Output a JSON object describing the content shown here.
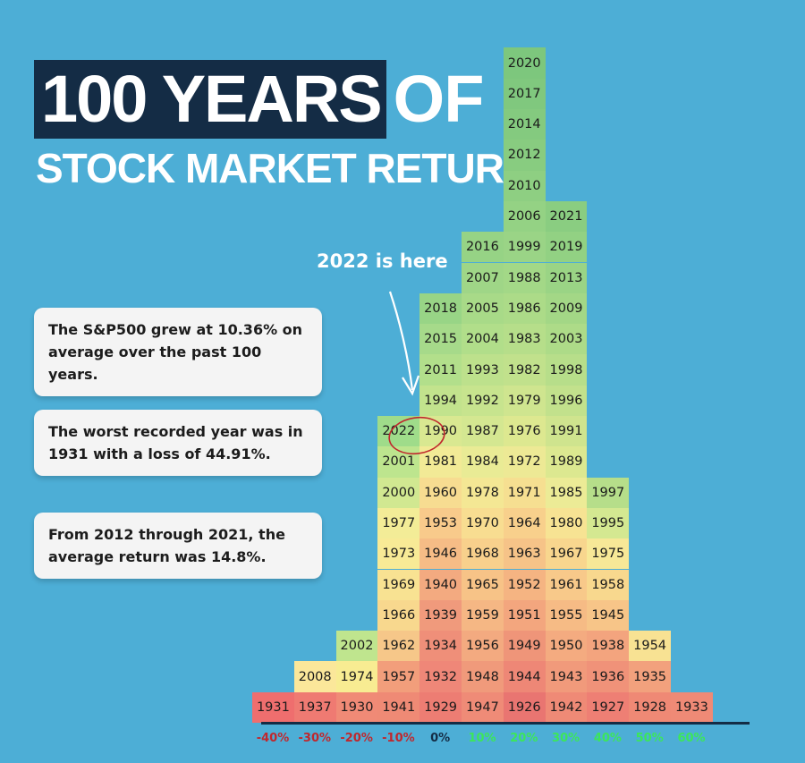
{
  "title": {
    "highlight": "100 YEARS",
    "rest": "OF",
    "line2": "STOCK MARKET RETURN"
  },
  "cards": [
    "The S&P500 grew at 10.36% on average over the past 100 years.",
    "The worst recorded year was in 1931 with a loss of 44.91%.",
    "From 2012 through 2021, the average return was 14.8%."
  ],
  "annotation": "2022 is here",
  "colors": {
    "background": "#4daed6",
    "title_highlight": "#142c45",
    "negative_axis": "#c0272d",
    "positive_axis": "#3ce65a",
    "circle": "#c0272d"
  },
  "chart_data": {
    "type": "histogram",
    "title": "100 YEARS OF STOCK MARKET RETURN",
    "categories": [
      "-40%",
      "-30%",
      "-20%",
      "-10%",
      "0%",
      "10%",
      "20%",
      "30%",
      "40%",
      "50%",
      "60%"
    ],
    "columns": [
      [
        "1931"
      ],
      [
        "1937",
        "2008"
      ],
      [
        "1930",
        "1974",
        "2002"
      ],
      [
        "1941",
        "1957",
        "1962",
        "1966",
        "1969",
        "1973",
        "1977",
        "2000",
        "2001",
        "2022"
      ],
      [
        "1929",
        "1932",
        "1934",
        "1939",
        "1940",
        "1946",
        "1953",
        "1960",
        "1981",
        "1990",
        "1994",
        "2011",
        "2015",
        "2018"
      ],
      [
        "1947",
        "1948",
        "1956",
        "1959",
        "1965",
        "1968",
        "1970",
        "1978",
        "1984",
        "1987",
        "1992",
        "1993",
        "2004",
        "2005",
        "2007",
        "2016"
      ],
      [
        "1926",
        "1944",
        "1949",
        "1951",
        "1952",
        "1963",
        "1964",
        "1971",
        "1972",
        "1976",
        "1979",
        "1982",
        "1983",
        "1986",
        "1988",
        "1999",
        "2006",
        "2010",
        "2012",
        "2014",
        "2017",
        "2020"
      ],
      [
        "1942",
        "1943",
        "1950",
        "1955",
        "1961",
        "1967",
        "1980",
        "1985",
        "1989",
        "1991",
        "1996",
        "1998",
        "2003",
        "2009",
        "2013",
        "2019",
        "2021"
      ],
      [
        "1927",
        "1936",
        "1938",
        "1945",
        "1958",
        "1975",
        "1995",
        "1997"
      ],
      [
        "1928",
        "1935",
        "1954"
      ],
      [
        "1933"
      ]
    ],
    "counts": [
      1,
      2,
      3,
      10,
      14,
      16,
      22,
      17,
      8,
      3,
      1
    ],
    "highlighted_year": "2022",
    "axis_colors": [
      "#c0272d",
      "#c0272d",
      "#c0272d",
      "#c0272d",
      "#142c45",
      "#3ce65a",
      "#3ce65a",
      "#3ce65a",
      "#3ce65a",
      "#3ce65a",
      "#3ce65a"
    ]
  }
}
